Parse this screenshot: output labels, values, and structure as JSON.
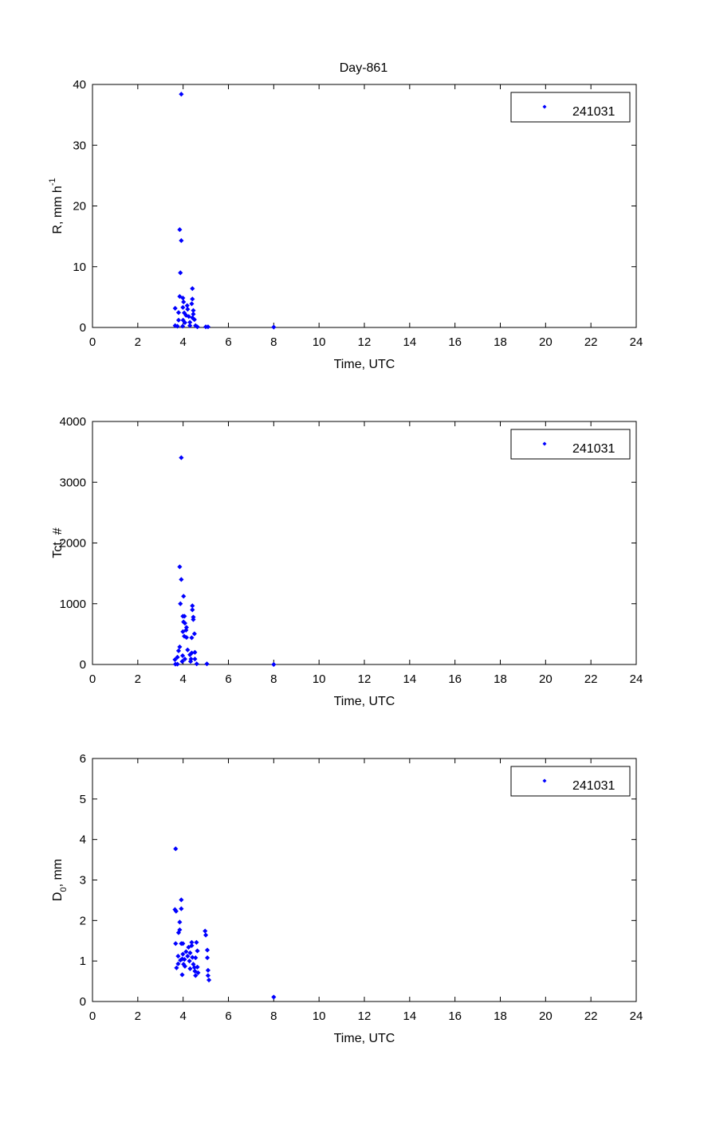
{
  "title": "Day-861",
  "marker_color": "#0000ff",
  "chart_data": [
    {
      "type": "scatter",
      "xlabel": "Time, UTC",
      "ylabel": "R, mm h",
      "ylabel_sup": "-1",
      "ylabel_sub": "",
      "xlim": [
        0,
        24
      ],
      "ylim": [
        0,
        40
      ],
      "xticks": [
        "0",
        "2",
        "4",
        "6",
        "8",
        "10",
        "12",
        "14",
        "16",
        "18",
        "20",
        "22",
        "24"
      ],
      "yticks": [
        "0",
        "10",
        "20",
        "30",
        "40"
      ],
      "legend": "241031",
      "legend_position": "top-right",
      "x": [
        3.92,
        3.85,
        3.92,
        3.88,
        4.41,
        3.85,
        3.99,
        4.02,
        3.65,
        3.99,
        4.18,
        4.38,
        4.41,
        4.2,
        3.8,
        4.05,
        4.45,
        4.45,
        4.13,
        4.25,
        4.41,
        4.5,
        4.0,
        3.8,
        4.08,
        4.3,
        3.65,
        3.75,
        3.98,
        4.3,
        4.55,
        4.63,
        5.0,
        5.1,
        8.0
      ],
      "y": [
        38.4,
        16.1,
        14.3,
        9.0,
        6.4,
        5.1,
        4.85,
        4.2,
        3.15,
        3.3,
        3.6,
        3.9,
        4.68,
        3.0,
        2.45,
        2.4,
        2.8,
        2.2,
        2.0,
        1.8,
        1.6,
        1.3,
        1.2,
        1.2,
        0.8,
        0.85,
        0.3,
        0.2,
        0.2,
        0.3,
        0.3,
        0.1,
        0.1,
        0.1,
        0.05
      ]
    },
    {
      "type": "scatter",
      "xlabel": "Time, UTC",
      "ylabel": "Tct, #",
      "ylabel_sup": "",
      "ylabel_sub": "",
      "xlim": [
        0,
        24
      ],
      "ylim": [
        0,
        4000
      ],
      "xticks": [
        "0",
        "2",
        "4",
        "6",
        "8",
        "10",
        "12",
        "14",
        "16",
        "18",
        "20",
        "22",
        "24"
      ],
      "yticks": [
        "0",
        "1000",
        "2000",
        "3000",
        "4000"
      ],
      "legend": "241031",
      "legend_position": "top-right",
      "x": [
        3.92,
        3.85,
        3.92,
        4.02,
        3.88,
        4.41,
        4.41,
        3.99,
        4.06,
        4.45,
        4.45,
        4.02,
        4.08,
        4.15,
        4.13,
        3.99,
        4.5,
        4.05,
        4.15,
        4.38,
        3.85,
        3.8,
        4.2,
        4.38,
        4.52,
        3.75,
        3.98,
        4.3,
        4.08,
        4.35,
        4.52,
        3.64,
        3.96,
        4.33,
        3.66,
        3.75,
        4.6,
        5.05,
        8.0
      ],
      "y": [
        3404,
        1608,
        1399,
        1123,
        1000,
        966,
        900,
        795,
        795,
        780,
        740,
        700,
        680,
        610,
        565,
        540,
        505,
        465,
        445,
        440,
        290,
        225,
        240,
        190,
        200,
        120,
        145,
        160,
        90,
        90,
        90,
        80,
        50,
        50,
        5,
        5,
        10,
        10,
        0
      ]
    },
    {
      "type": "scatter",
      "xlabel": "Time, UTC",
      "ylabel": "D",
      "ylabel_sup": "",
      "ylabel_sub": "0",
      "ylabel_suffix": ", mm",
      "xlim": [
        0,
        24
      ],
      "ylim": [
        0,
        6
      ],
      "xticks": [
        "0",
        "2",
        "4",
        "6",
        "8",
        "10",
        "12",
        "14",
        "16",
        "18",
        "20",
        "22",
        "24"
      ],
      "yticks": [
        "0",
        "1",
        "2",
        "3",
        "4",
        "5",
        "6"
      ],
      "legend": "241031",
      "legend_position": "top-right",
      "x": [
        3.67,
        3.92,
        3.64,
        3.69,
        3.92,
        3.85,
        3.85,
        3.8,
        4.97,
        5.0,
        3.67,
        3.92,
        3.99,
        4.38,
        4.59,
        4.38,
        4.24,
        5.07,
        4.63,
        4.13,
        4.31,
        3.99,
        3.78,
        4.2,
        4.41,
        4.55,
        5.07,
        3.96,
        4.06,
        3.88,
        4.28,
        4.02,
        4.08,
        4.45,
        3.78,
        3.71,
        4.31,
        4.5,
        4.63,
        5.1,
        4.52,
        4.66,
        3.96,
        4.55,
        5.1,
        5.14,
        8.0
      ],
      "y": [
        3.77,
        2.51,
        2.27,
        2.23,
        2.29,
        1.96,
        1.77,
        1.7,
        1.74,
        1.64,
        1.43,
        1.43,
        1.43,
        1.46,
        1.46,
        1.38,
        1.34,
        1.27,
        1.25,
        1.23,
        1.2,
        1.17,
        1.12,
        1.12,
        1.09,
        1.08,
        1.08,
        1.05,
        1.04,
        1.02,
        1.0,
        0.92,
        0.87,
        0.92,
        0.93,
        0.83,
        0.81,
        0.84,
        0.85,
        0.77,
        0.75,
        0.71,
        0.66,
        0.64,
        0.64,
        0.53,
        0.11
      ]
    }
  ]
}
